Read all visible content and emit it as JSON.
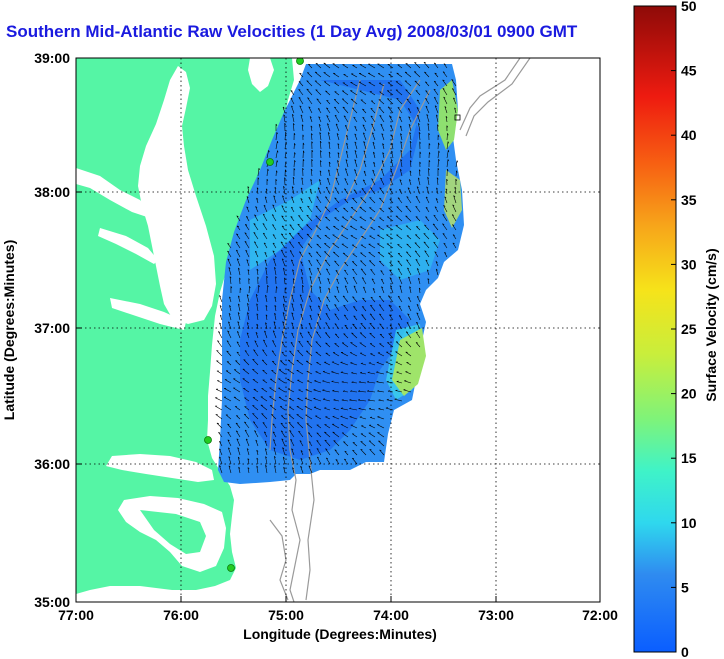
{
  "title": "Southern Mid-Atlantic Raw Velocities (1 Day Avg) 2008/03/01 0900 GMT",
  "map": {
    "xlabel": "Longitude (Degrees:Minutes)",
    "ylabel": "Latitude (Degrees:Minutes)",
    "x_ticks": [
      "77:00",
      "76:00",
      "75:00",
      "74:00",
      "73:00",
      "72:00"
    ],
    "y_ticks": [
      "39:00",
      "38:00",
      "37:00",
      "36:00",
      "35:00"
    ],
    "lon_range": [
      -77,
      -72
    ],
    "lat_range": [
      35,
      39
    ],
    "grid": true,
    "land_color": "#55f5a5",
    "bathymetry_color": "#9a9a9a",
    "station_marker_color": "#22cc22"
  },
  "colorbar": {
    "label": "Surface Velocity (cm/s)",
    "ticks": [
      "0",
      "5",
      "10",
      "15",
      "20",
      "25",
      "30",
      "35",
      "40",
      "45",
      "50"
    ],
    "range": [
      0,
      50
    ],
    "colormap": "jet"
  }
}
